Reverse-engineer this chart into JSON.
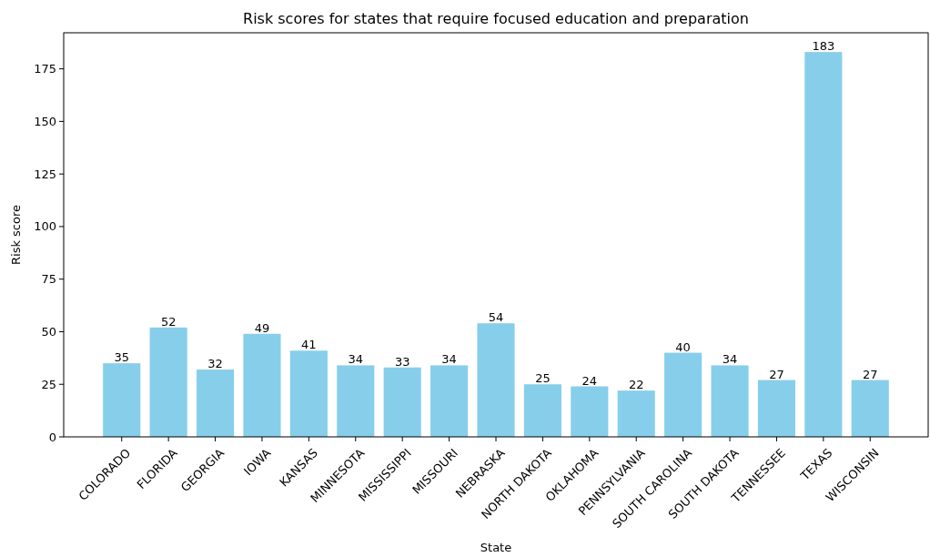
{
  "chart_data": {
    "type": "bar",
    "title": "Risk scores for states that require focused education and preparation",
    "xlabel": "State",
    "ylabel": "Risk score",
    "categories": [
      "COLORADO",
      "FLORIDA",
      "GEORGIA",
      "IOWA",
      "KANSAS",
      "MINNESOTA",
      "MISSISSIPPI",
      "MISSOURI",
      "NEBRASKA",
      "NORTH DAKOTA",
      "OKLAHOMA",
      "PENNSYLVANIA",
      "SOUTH CAROLINA",
      "SOUTH DAKOTA",
      "TENNESSEE",
      "TEXAS",
      "WISCONSIN"
    ],
    "values": [
      35,
      52,
      32,
      49,
      41,
      34,
      33,
      34,
      54,
      25,
      24,
      22,
      40,
      34,
      27,
      183,
      27
    ],
    "color": "#87ceeb",
    "data_labels": true,
    "ylim": [
      0,
      192.15
    ],
    "yticks": [
      0,
      25,
      50,
      75,
      100,
      125,
      150,
      175
    ]
  }
}
